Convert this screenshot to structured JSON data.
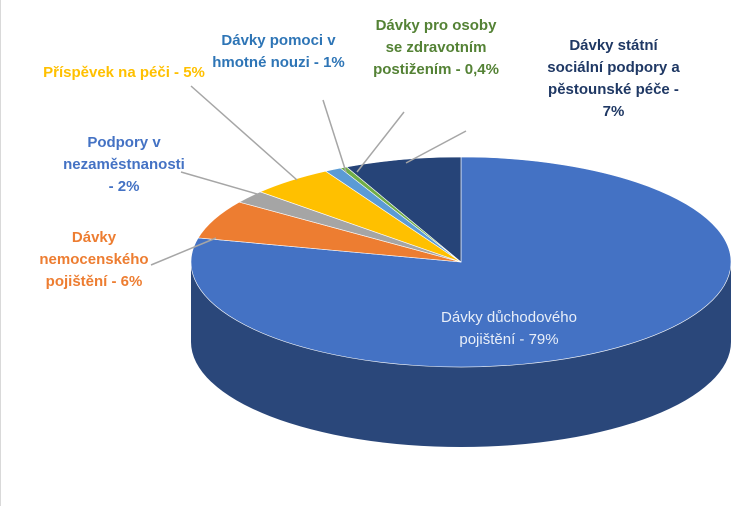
{
  "chart_data": {
    "type": "pie",
    "labels": [
      "Dávky důchodového pojištění - 79%",
      "Dávky nemocenského pojištění - 6%",
      "Podpory v nezaměstnanosti - 2%",
      "Příspěvek na péči - 5%",
      "Dávky pomoci v hmotné nouzi - 1%",
      "Dávky pro osoby se zdravotním postižením - 0,4%",
      "Dávky státní sociální podpory a pěstounské péče - 7%"
    ],
    "values": [
      79,
      6,
      2,
      5,
      1,
      0.4,
      7
    ],
    "colors": [
      "#4472c4",
      "#ed7d31",
      "#a5a5a5",
      "#ffc000",
      "#5b9bd5",
      "#70ad47",
      "#264478"
    ]
  }
}
